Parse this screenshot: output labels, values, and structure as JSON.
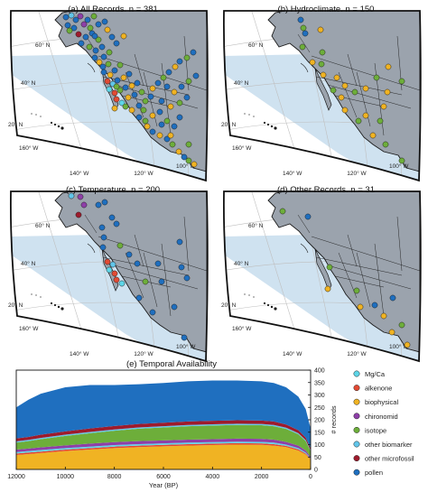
{
  "maps": [
    {
      "title": "(a) All Records. n = 381",
      "layer": "all",
      "n": 381
    },
    {
      "title": "(b) Hydroclimate. n = 150",
      "layer": "hydro",
      "n": 150
    },
    {
      "title": "(c) Temperature. n = 200",
      "layer": "temp",
      "n": 200
    },
    {
      "title": "(d) Other Records. n = 31",
      "layer": "other",
      "n": 31
    }
  ],
  "map_labels": {
    "lat60": "60° N",
    "lat40": "40° N",
    "lat20": "20° N",
    "lon160": "160° W",
    "lon140": "140° W",
    "lon120": "120° W",
    "lon100": "100° W"
  },
  "map_colors": {
    "land": "#9ba3ad",
    "ocean": "#ffffff",
    "shade": "#cfe2f0",
    "border": "#1a1a1a",
    "graticule": "#bfbfbf",
    "frame": "#111111"
  },
  "proxy_types": [
    {
      "name": "Mg/Ca",
      "color": "#5ed6e8"
    },
    {
      "name": "alkenone",
      "color": "#e24a33"
    },
    {
      "name": "biophysical",
      "color": "#f0b323"
    },
    {
      "name": "chironomid",
      "color": "#8e3fa8"
    },
    {
      "name": "isotope",
      "color": "#6dae3a"
    },
    {
      "name": "other biomarker",
      "color": "#62c6ea"
    },
    {
      "name": "other microfossil",
      "color": "#9e1b2c"
    },
    {
      "name": "pollen",
      "color": "#1f6fbf"
    }
  ],
  "chart_data": {
    "type": "area",
    "stacked": true,
    "title": "(e) Temporal Availability",
    "xlabel": "Year (BP)",
    "ylabel": "# records",
    "xlim": [
      12000,
      0
    ],
    "ylim": [
      0,
      400
    ],
    "x_ticks": [
      12000,
      10000,
      8000,
      6000,
      4000,
      2000,
      0
    ],
    "y_ticks": [
      0,
      50,
      100,
      150,
      200,
      250,
      300,
      350,
      400
    ],
    "y_axis_side": "right",
    "legend": "right",
    "grid": false,
    "x": [
      12000,
      11500,
      11000,
      10000,
      9000,
      8000,
      7000,
      6000,
      5000,
      4000,
      3000,
      2000,
      1500,
      1000,
      500,
      200,
      0
    ],
    "series": [
      {
        "name": "biophysical",
        "values": [
          58,
          62,
          66,
          74,
          80,
          86,
          90,
          93,
          96,
          98,
          100,
          99,
          96,
          90,
          76,
          60,
          40
        ]
      },
      {
        "name": "alkenone",
        "values": [
          6,
          6,
          6,
          6,
          6,
          6,
          6,
          6,
          6,
          6,
          6,
          6,
          6,
          5,
          5,
          4,
          3
        ]
      },
      {
        "name": "Mg/Ca",
        "values": [
          6,
          6,
          6,
          6,
          6,
          6,
          6,
          6,
          6,
          6,
          6,
          6,
          6,
          5,
          5,
          4,
          3
        ]
      },
      {
        "name": "chironomid",
        "values": [
          10,
          10,
          11,
          11,
          12,
          12,
          12,
          12,
          12,
          12,
          12,
          12,
          12,
          11,
          10,
          8,
          6
        ]
      },
      {
        "name": "isotope",
        "values": [
          28,
          30,
          33,
          38,
          42,
          46,
          50,
          52,
          54,
          55,
          55,
          55,
          54,
          52,
          46,
          38,
          22
        ]
      },
      {
        "name": "other biomarker",
        "values": [
          5,
          5,
          5,
          5,
          5,
          5,
          5,
          5,
          5,
          5,
          5,
          5,
          5,
          5,
          4,
          4,
          3
        ]
      },
      {
        "name": "other microfossil",
        "values": [
          12,
          12,
          13,
          13,
          14,
          14,
          14,
          14,
          14,
          14,
          14,
          14,
          14,
          13,
          12,
          10,
          8
        ]
      },
      {
        "name": "pollen",
        "values": [
          125,
          150,
          165,
          178,
          175,
          165,
          160,
          160,
          162,
          162,
          160,
          158,
          155,
          150,
          135,
          115,
          80
        ]
      }
    ]
  }
}
